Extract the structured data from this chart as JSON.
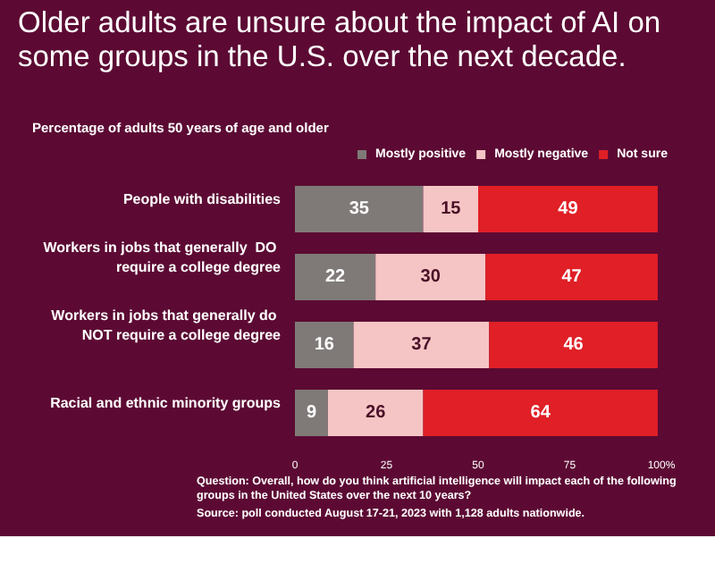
{
  "chart_data": {
    "type": "bar",
    "orientation": "horizontal",
    "stacked": true,
    "title": "Older adults are unsure about the impact of AI on some groups in the U.S. over the next decade.",
    "subtitle": "Percentage of adults 50 years of age and older",
    "categories": [
      "People with disabilities",
      "Workers in jobs that generally  DO require a college degree",
      "Workers in jobs that generally do NOT require a college degree",
      "Racial and ethnic minority groups"
    ],
    "series": [
      {
        "name": "Mostly positive",
        "color": "#7f7a78",
        "values": [
          35,
          22,
          16,
          9
        ]
      },
      {
        "name": "Mostly negative",
        "color": "#f5c5c5",
        "values": [
          15,
          30,
          37,
          26
        ]
      },
      {
        "name": "Not sure",
        "color": "#e01f26",
        "values": [
          49,
          47,
          46,
          64
        ]
      }
    ],
    "xlim": [
      0,
      100
    ],
    "xticks": [
      0,
      25,
      50,
      75,
      {
        "value": 100,
        "label": "100%"
      }
    ],
    "data_labels": true,
    "legend": "top",
    "grid": false,
    "annotations": [
      "Question: Overall, how do you think artificial intelligence will impact each of the following groups in the United States over the next 10 years?",
      "Source: poll conducted August 17-21, 2023 with 1,128 adults nationwide."
    ]
  }
}
